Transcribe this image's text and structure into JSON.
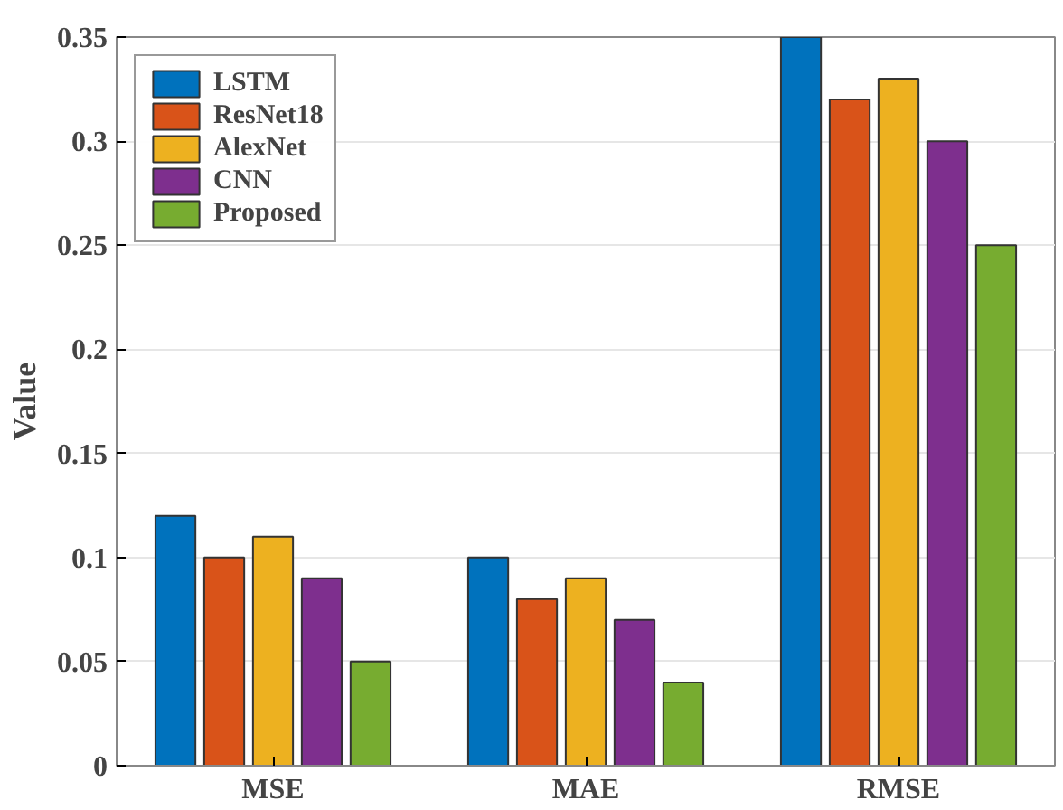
{
  "chart_data": {
    "type": "bar",
    "ylabel": "Value",
    "categories": [
      "MSE",
      "MAE",
      "RMSE"
    ],
    "series": [
      {
        "name": "LSTM",
        "color": "#0072bd",
        "values": [
          0.12,
          0.1,
          0.35
        ]
      },
      {
        "name": "ResNet18",
        "color": "#d95319",
        "values": [
          0.1,
          0.08,
          0.32
        ]
      },
      {
        "name": "AlexNet",
        "color": "#edb120",
        "values": [
          0.11,
          0.09,
          0.33
        ]
      },
      {
        "name": "CNN",
        "color": "#7e2f8e",
        "values": [
          0.09,
          0.07,
          0.3
        ]
      },
      {
        "name": "Proposed",
        "color": "#77ac30",
        "values": [
          0.05,
          0.04,
          0.25
        ]
      }
    ],
    "ylim": [
      0,
      0.35
    ],
    "yticks": [
      0,
      0.05,
      0.1,
      0.15,
      0.2,
      0.25,
      0.3,
      0.35
    ],
    "grid": "y",
    "legend": "top left"
  }
}
